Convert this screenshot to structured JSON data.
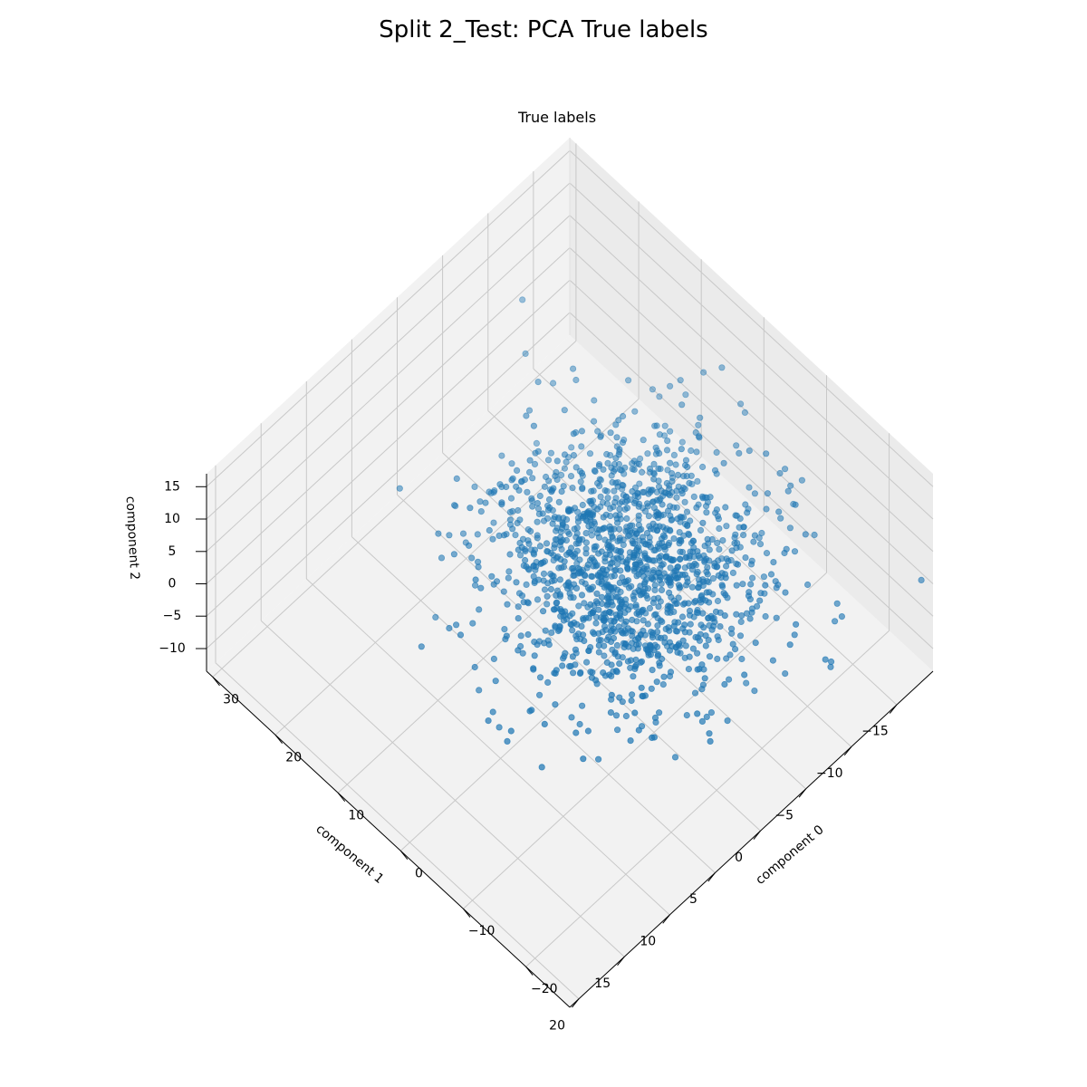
{
  "figure": {
    "title": "Split 2_Test: PCA True labels"
  },
  "chart_data": {
    "type": "scatter",
    "projection": "3d",
    "title": "True labels",
    "axes": {
      "x": {
        "label": "component 0",
        "range": [
          -27,
          31
        ],
        "ticks": [
          -20,
          -10,
          0,
          10,
          20,
          30
        ],
        "tick_labels": [
          "−20",
          "−10",
          "0",
          "10",
          "20",
          "30"
        ]
      },
      "y": {
        "label": "component 1",
        "range": [
          -19,
          21
        ],
        "ticks": [
          -15,
          -10,
          -5,
          0,
          5,
          10,
          15,
          20
        ],
        "tick_labels": [
          "−15",
          "−10",
          "−5",
          "0",
          "5",
          "10",
          "15",
          "20"
        ]
      },
      "z": {
        "label": "component 2",
        "range": [
          -13.5,
          17
        ],
        "ticks": [
          -10,
          -5,
          0,
          5,
          10,
          15
        ],
        "tick_labels": [
          "−10",
          "−5",
          "0",
          "5",
          "10",
          "15"
        ]
      }
    },
    "grid": true,
    "series": [
      {
        "color": "#1f77b4",
        "point_count": 1500,
        "distribution": {
          "component_0": {
            "mean": -1.5,
            "std": 8
          },
          "component_1": {
            "mean": -3,
            "std": 5.5
          },
          "component_2": {
            "mean": 1,
            "std": 4.5
          }
        }
      }
    ]
  }
}
